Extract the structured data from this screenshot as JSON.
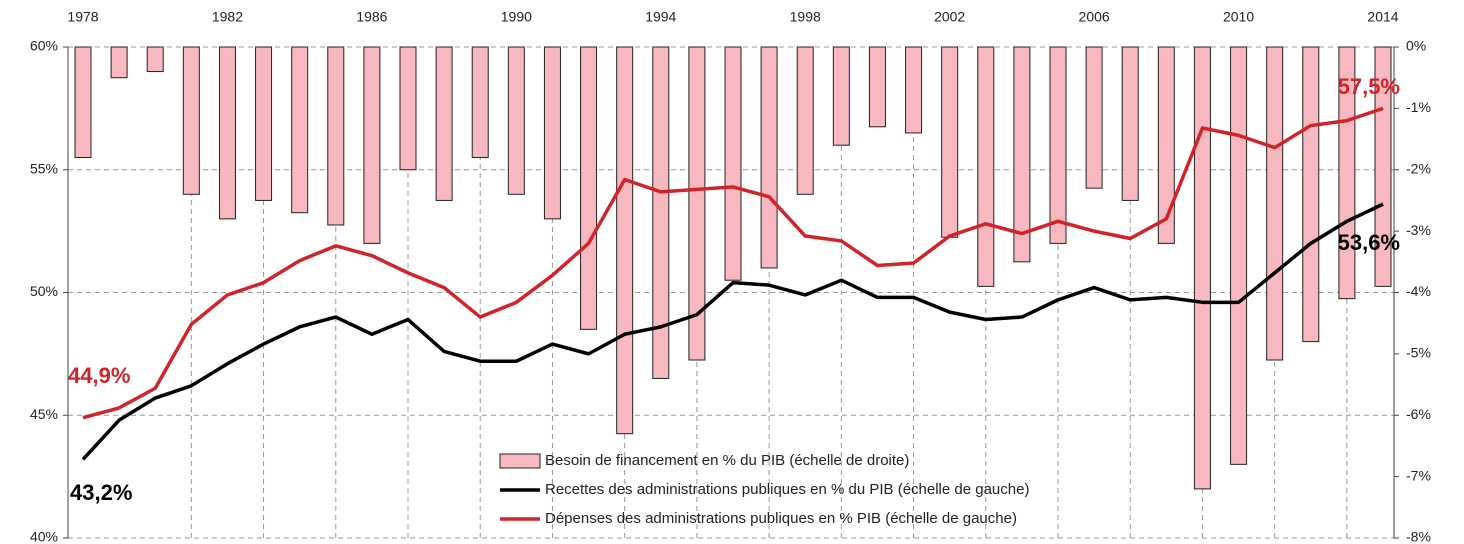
{
  "chart_data": {
    "type": "combo",
    "categories": [
      "1978",
      null,
      null,
      null,
      "1982",
      null,
      null,
      null,
      "1986",
      null,
      null,
      null,
      "1990",
      null,
      null,
      null,
      "1994",
      null,
      null,
      null,
      "1998",
      null,
      null,
      null,
      "2002",
      null,
      null,
      null,
      "2006",
      null,
      null,
      null,
      "2010",
      null,
      null,
      null,
      "2014"
    ],
    "ylim": [
      40,
      60
    ],
    "yticks": [
      {
        "value": 40,
        "label": "40%"
      },
      {
        "value": 45,
        "label": "45%"
      },
      {
        "value": 50,
        "label": "50%"
      },
      {
        "value": 55,
        "label": "55%"
      },
      {
        "value": 60,
        "label": "60%"
      }
    ],
    "y2lim": [
      -8,
      0
    ],
    "y2ticks": [
      {
        "value": -8,
        "label": "-8%"
      },
      {
        "value": -7,
        "label": "-7%"
      },
      {
        "value": -6,
        "label": "-6%"
      },
      {
        "value": -5,
        "label": "-5%"
      },
      {
        "value": -4,
        "label": "-4%"
      },
      {
        "value": -3,
        "label": "-3%"
      },
      {
        "value": -2,
        "label": "-2%"
      },
      {
        "value": -1,
        "label": "-1%"
      },
      {
        "value": 0,
        "label": "0%"
      }
    ],
    "grid": true,
    "series": [
      {
        "name": "Besoin de financement en % du PIB (échelle de droite)",
        "type": "bar",
        "axis": "y2",
        "color": "#f7b8bf",
        "values": [
          -1.8,
          -0.5,
          -0.4,
          -2.4,
          -2.8,
          -2.5,
          -2.7,
          -2.9,
          -3.2,
          -2.0,
          -2.5,
          -1.8,
          -2.4,
          -2.8,
          -4.6,
          -6.3,
          -5.4,
          -5.1,
          -3.8,
          -3.6,
          -2.4,
          -1.6,
          -1.3,
          -1.4,
          -3.1,
          -3.9,
          -3.5,
          -3.2,
          -2.3,
          -2.5,
          -3.2,
          -7.2,
          -6.8,
          -5.1,
          -4.8,
          -4.1,
          -3.9
        ]
      },
      {
        "name": "Recettes des administrations publiques en % du PIB (échelle de gauche)",
        "type": "line",
        "color": "#000000",
        "values": [
          43.2,
          44.8,
          45.7,
          46.2,
          47.1,
          47.9,
          48.6,
          49.0,
          48.3,
          48.9,
          47.6,
          47.2,
          47.2,
          47.9,
          47.5,
          48.3,
          48.6,
          49.1,
          50.4,
          50.3,
          49.9,
          50.5,
          49.8,
          49.8,
          49.2,
          48.9,
          49.0,
          49.7,
          50.2,
          49.7,
          49.8,
          49.6,
          49.6,
          50.8,
          52.0,
          52.9,
          53.6
        ]
      },
      {
        "name": "Dépenses des administrations publiques en % PIB (échelle de gauche)",
        "type": "line",
        "color": "#d0232a",
        "values": [
          44.9,
          45.3,
          46.1,
          48.7,
          49.9,
          50.4,
          51.3,
          51.9,
          51.5,
          50.8,
          50.2,
          49.0,
          49.6,
          50.7,
          52.0,
          54.6,
          54.1,
          54.2,
          54.3,
          53.9,
          52.3,
          52.1,
          51.1,
          51.2,
          52.3,
          52.8,
          52.4,
          52.9,
          52.5,
          52.2,
          53.0,
          56.7,
          56.4,
          55.9,
          56.8,
          57.0,
          57.5
        ]
      }
    ],
    "annotations": [
      {
        "text": "44,9%",
        "color": "#d0232a"
      },
      {
        "text": "43,2%",
        "color": "#000000"
      },
      {
        "text": "57,5%",
        "color": "#d0232a"
      },
      {
        "text": "53,6%",
        "color": "#000000"
      }
    ]
  }
}
